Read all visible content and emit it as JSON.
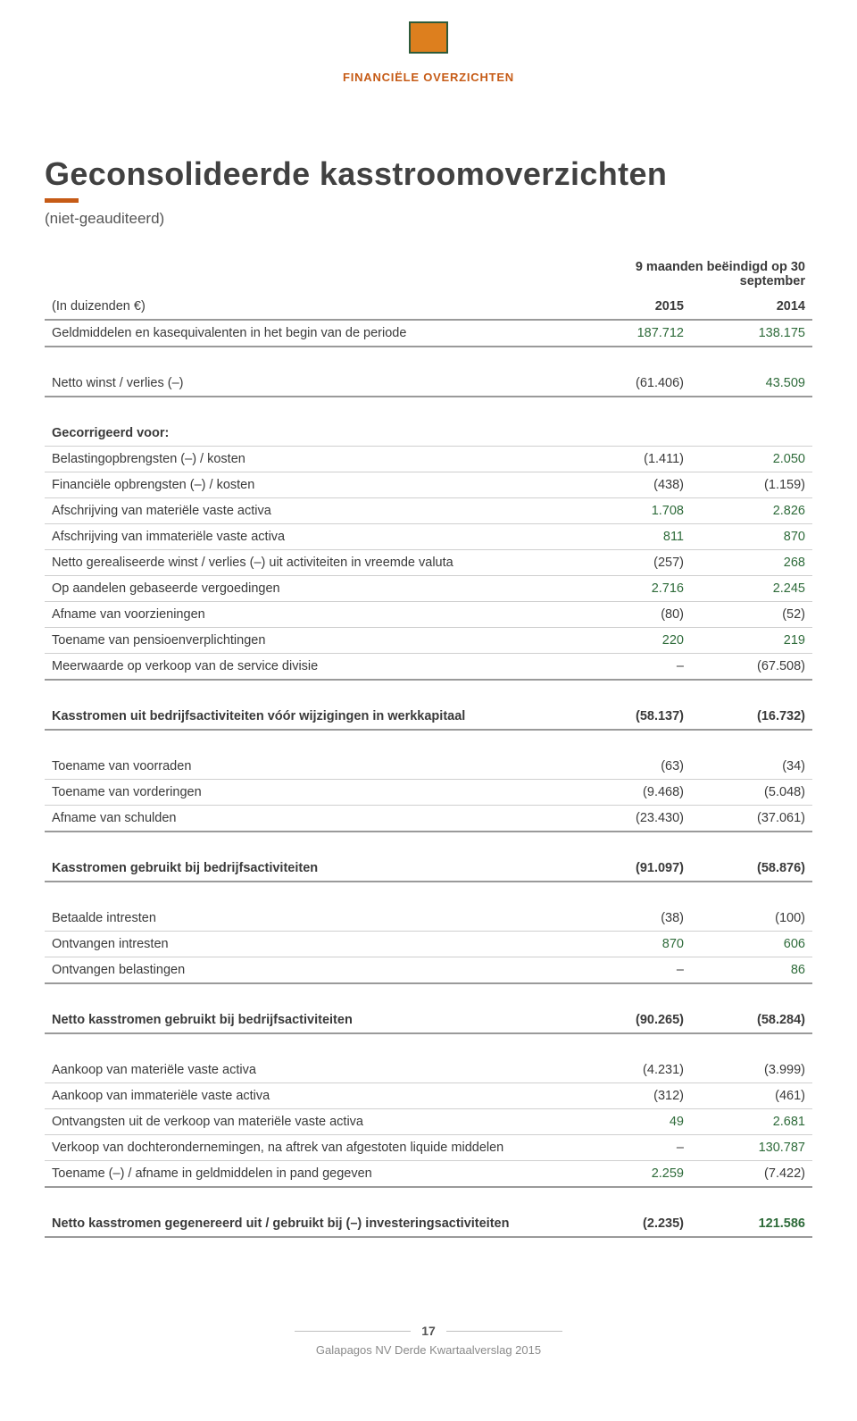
{
  "header": {
    "section_label": "FINANCIËLE OVERZICHTEN",
    "title": "Geconsolideerde kasstroomoverzichten",
    "subtitle": "(niet-geauditeerd)"
  },
  "table": {
    "period_header": "9 maanden beëindigd op 30 september",
    "col_label": "(In duizenden €)",
    "col_2015": "2015",
    "col_2014": "2014",
    "sections": [
      {
        "rows": [
          {
            "bold": false,
            "label": "Geldmiddelen en kasequivalenten in het begin van de periode",
            "v2015": "187.712",
            "v2014": "138.175",
            "pos2015": true,
            "pos2014": true
          }
        ]
      },
      {
        "rows": [
          {
            "bold": false,
            "label": "Netto winst / verlies (–)",
            "v2015": "(61.406)",
            "v2014": "43.509",
            "pos2015": false,
            "pos2014": true
          }
        ]
      },
      {
        "rows": [
          {
            "bold": true,
            "label": "Gecorrigeerd voor:",
            "v2015": "",
            "v2014": ""
          },
          {
            "bold": false,
            "label": "Belastingopbrengsten (–) / kosten",
            "v2015": "(1.411)",
            "v2014": "2.050",
            "pos2015": false,
            "pos2014": true
          },
          {
            "bold": false,
            "label": "Financiële opbrengsten (–) / kosten",
            "v2015": "(438)",
            "v2014": "(1.159)",
            "pos2015": false,
            "pos2014": false
          },
          {
            "bold": false,
            "label": "Afschrijving van materiële vaste activa",
            "v2015": "1.708",
            "v2014": "2.826",
            "pos2015": true,
            "pos2014": true
          },
          {
            "bold": false,
            "label": "Afschrijving van immateriële vaste activa",
            "v2015": "811",
            "v2014": "870",
            "pos2015": true,
            "pos2014": true
          },
          {
            "bold": false,
            "label": "Netto gerealiseerde winst / verlies (–) uit activiteiten in vreemde valuta",
            "v2015": "(257)",
            "v2014": "268",
            "pos2015": false,
            "pos2014": true
          },
          {
            "bold": false,
            "label": "Op aandelen gebaseerde vergoedingen",
            "v2015": "2.716",
            "v2014": "2.245",
            "pos2015": true,
            "pos2014": true
          },
          {
            "bold": false,
            "label": "Afname van voorzieningen",
            "v2015": "(80)",
            "v2014": "(52)",
            "pos2015": false,
            "pos2014": false
          },
          {
            "bold": false,
            "label": "Toename van pensioenverplichtingen",
            "v2015": "220",
            "v2014": "219",
            "pos2015": true,
            "pos2014": true
          },
          {
            "bold": false,
            "label": "Meerwaarde op verkoop van de service divisie",
            "v2015": "–",
            "v2014": "(67.508)",
            "pos2015": false,
            "pos2014": false
          }
        ]
      },
      {
        "rows": [
          {
            "bold": true,
            "label": "Kasstromen uit bedrijfsactiviteiten vóór wijzigingen in werkkapitaal",
            "v2015": "(58.137)",
            "v2014": "(16.732)",
            "pos2015": false,
            "pos2014": false
          }
        ]
      },
      {
        "rows": [
          {
            "bold": false,
            "label": "Toename van voorraden",
            "v2015": "(63)",
            "v2014": "(34)",
            "pos2015": false,
            "pos2014": false
          },
          {
            "bold": false,
            "label": "Toename van vorderingen",
            "v2015": "(9.468)",
            "v2014": "(5.048)",
            "pos2015": false,
            "pos2014": false
          },
          {
            "bold": false,
            "label": "Afname van schulden",
            "v2015": "(23.430)",
            "v2014": "(37.061)",
            "pos2015": false,
            "pos2014": false
          }
        ]
      },
      {
        "rows": [
          {
            "bold": true,
            "label": "Kasstromen gebruikt bij bedrijfsactiviteiten",
            "v2015": "(91.097)",
            "v2014": "(58.876)",
            "pos2015": false,
            "pos2014": false
          }
        ]
      },
      {
        "rows": [
          {
            "bold": false,
            "label": "Betaalde intresten",
            "v2015": "(38)",
            "v2014": "(100)",
            "pos2015": false,
            "pos2014": false
          },
          {
            "bold": false,
            "label": "Ontvangen intresten",
            "v2015": "870",
            "v2014": "606",
            "pos2015": true,
            "pos2014": true
          },
          {
            "bold": false,
            "label": "Ontvangen belastingen",
            "v2015": "–",
            "v2014": "86",
            "pos2015": false,
            "pos2014": true
          }
        ]
      },
      {
        "rows": [
          {
            "bold": true,
            "label": "Netto kasstromen gebruikt bij bedrijfsactiviteiten",
            "v2015": "(90.265)",
            "v2014": "(58.284)",
            "pos2015": false,
            "pos2014": false
          }
        ]
      },
      {
        "rows": [
          {
            "bold": false,
            "label": "Aankoop van materiële vaste activa",
            "v2015": "(4.231)",
            "v2014": "(3.999)",
            "pos2015": false,
            "pos2014": false
          },
          {
            "bold": false,
            "label": "Aankoop van immateriële vaste activa",
            "v2015": "(312)",
            "v2014": "(461)",
            "pos2015": false,
            "pos2014": false
          },
          {
            "bold": false,
            "label": "Ontvangsten uit de verkoop van materiële vaste activa",
            "v2015": "49",
            "v2014": "2.681",
            "pos2015": true,
            "pos2014": true
          },
          {
            "bold": false,
            "label": "Verkoop van dochterondernemingen, na aftrek van afgestoten liquide middelen",
            "v2015": "–",
            "v2014": "130.787",
            "pos2015": false,
            "pos2014": true
          },
          {
            "bold": false,
            "label": "Toename (–) / afname in geldmiddelen in pand gegeven",
            "v2015": "2.259",
            "v2014": "(7.422)",
            "pos2015": true,
            "pos2014": false
          }
        ]
      },
      {
        "rows": [
          {
            "bold": true,
            "label": "Netto kasstromen gegenereerd uit / gebruikt bij (–) investeringsactiviteiten",
            "v2015": "(2.235)",
            "v2014": "121.586",
            "pos2015": false,
            "pos2014": true
          }
        ]
      }
    ]
  },
  "footer": {
    "page_number": "17",
    "report_title": "Galapagos NV Derde Kwartaalverslag 2015"
  },
  "style": {
    "accent_color": "#c65b16",
    "positive_color": "#2e6b3a",
    "text_color": "#3a3a3a",
    "border_heavy": "#9a9a9a",
    "border_light": "#cfcfcf"
  }
}
